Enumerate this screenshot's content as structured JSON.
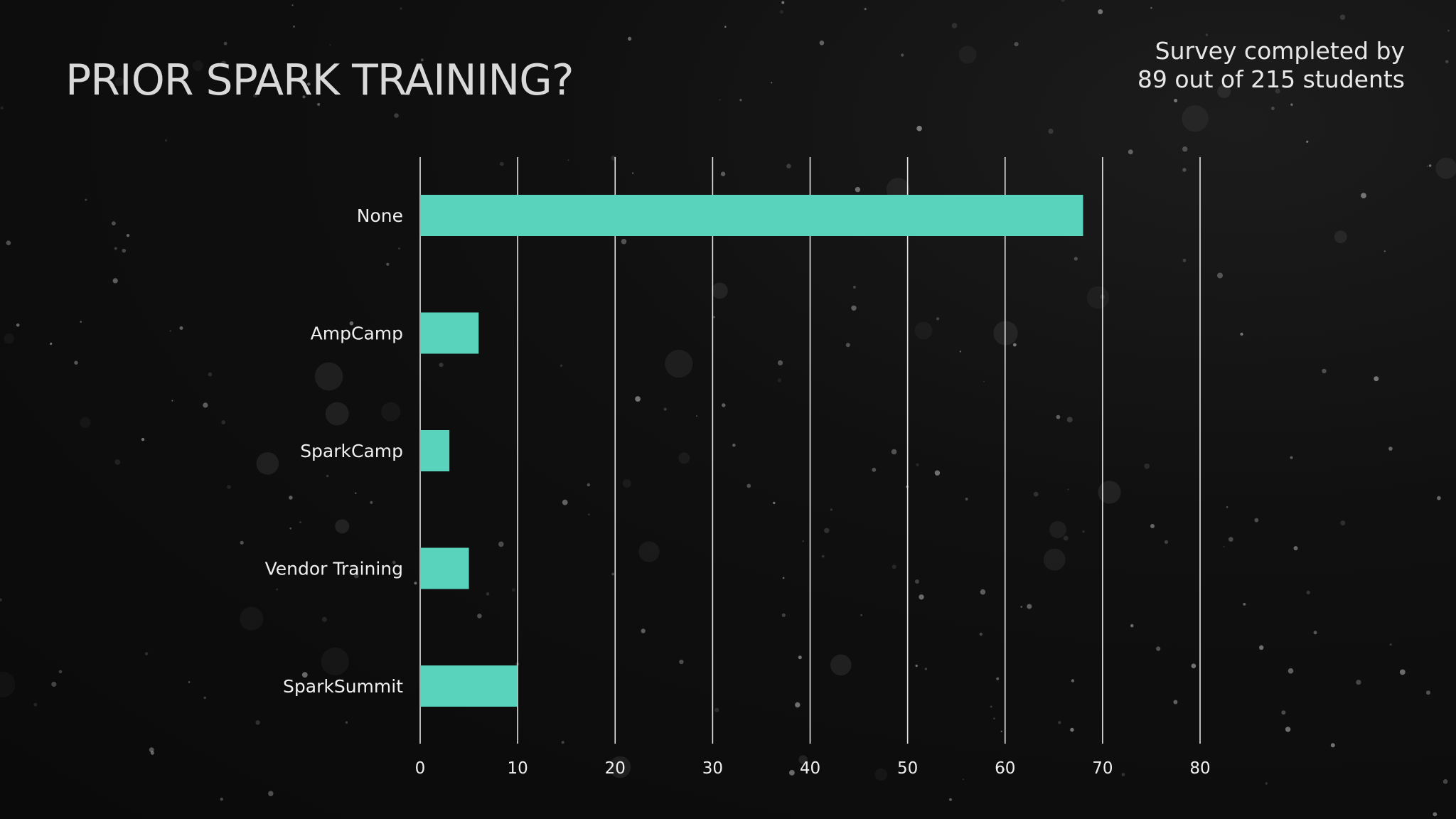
{
  "slide": {
    "title": "PRIOR SPARK TRAINING?",
    "subtitle_line1": "Survey completed by",
    "subtitle_line2": "89 out of 215 students",
    "background_color": "#0b0b0b",
    "text_color": "#f0f0f0"
  },
  "chart_data": {
    "type": "bar",
    "orientation": "horizontal",
    "categories": [
      "None",
      "AmpCamp",
      "SparkCamp",
      "Vendor Training",
      "SparkSummit"
    ],
    "values": [
      68,
      6,
      3,
      5,
      10
    ],
    "xlim": [
      0,
      80
    ],
    "xticks": [
      0,
      10,
      20,
      30,
      40,
      50,
      60,
      70,
      80
    ],
    "title": "PRIOR SPARK TRAINING?",
    "xlabel": "",
    "ylabel": "",
    "grid": true,
    "legend": "none",
    "bar_color": "#5ad3bc",
    "grid_color": "#e6e6e6"
  }
}
